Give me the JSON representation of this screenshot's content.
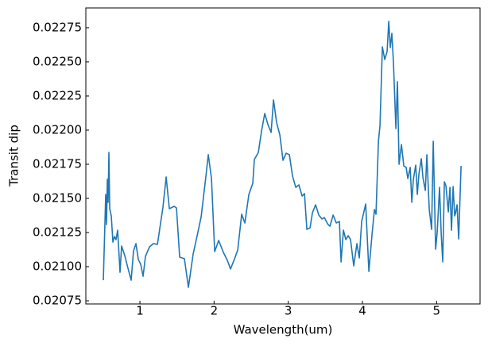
{
  "chart_data": {
    "type": "line",
    "x_label": "Wavelength(um)",
    "y_label": "Transit dip",
    "color": "#1f77b4",
    "x": [
      0.507,
      0.539,
      0.55,
      0.561,
      0.571,
      0.582,
      0.593,
      0.614,
      0.636,
      0.657,
      0.678,
      0.7,
      0.732,
      0.753,
      0.796,
      0.839,
      0.882,
      0.914,
      0.947,
      0.979,
      1.011,
      1.043,
      1.075,
      1.129,
      1.182,
      1.236,
      1.311,
      1.354,
      1.397,
      1.461,
      1.493,
      1.536,
      1.6,
      1.654,
      1.718,
      1.772,
      1.826,
      1.89,
      1.922,
      1.965,
      2.008,
      2.062,
      2.125,
      2.179,
      2.222,
      2.276,
      2.319,
      2.372,
      2.415,
      2.469,
      2.522,
      2.543,
      2.597,
      2.64,
      2.683,
      2.726,
      2.769,
      2.801,
      2.844,
      2.887,
      2.929,
      2.972,
      3.015,
      3.058,
      3.101,
      3.144,
      3.187,
      3.219,
      3.251,
      3.294,
      3.326,
      3.369,
      3.412,
      3.455,
      3.487,
      3.53,
      3.562,
      3.605,
      3.648,
      3.69,
      3.712,
      3.744,
      3.776,
      3.808,
      3.84,
      3.883,
      3.926,
      3.958,
      3.99,
      4.044,
      4.087,
      4.13,
      4.162,
      4.183,
      4.216,
      4.237,
      4.269,
      4.301,
      4.333,
      4.355,
      4.376,
      4.397,
      4.419,
      4.451,
      4.472,
      4.494,
      4.526,
      4.558,
      4.59,
      4.612,
      4.644,
      4.666,
      4.687,
      4.719,
      4.74,
      4.762,
      4.794,
      4.816,
      4.848,
      4.869,
      4.901,
      4.933,
      4.955,
      4.987,
      5.008,
      5.04,
      5.062,
      5.083,
      5.105,
      5.126,
      5.158,
      5.18,
      5.201,
      5.223,
      5.244,
      5.255,
      5.276,
      5.298,
      5.33
    ],
    "values": [
      0.020901,
      0.021529,
      0.021308,
      0.02164,
      0.021471,
      0.021837,
      0.021424,
      0.021372,
      0.02118,
      0.021221,
      0.021198,
      0.021267,
      0.020959,
      0.021151,
      0.021081,
      0.020988,
      0.020901,
      0.021116,
      0.021169,
      0.021052,
      0.021017,
      0.02093,
      0.021076,
      0.021145,
      0.021169,
      0.021163,
      0.021436,
      0.021657,
      0.021424,
      0.021442,
      0.02143,
      0.02107,
      0.021058,
      0.020849,
      0.021093,
      0.021227,
      0.021366,
      0.021663,
      0.02182,
      0.021645,
      0.02111,
      0.021192,
      0.021105,
      0.021046,
      0.020983,
      0.021058,
      0.021122,
      0.021384,
      0.02132,
      0.021529,
      0.02161,
      0.021785,
      0.021837,
      0.021994,
      0.022122,
      0.022041,
      0.021983,
      0.022221,
      0.022052,
      0.021965,
      0.021779,
      0.021831,
      0.02182,
      0.021663,
      0.021581,
      0.021599,
      0.021517,
      0.021535,
      0.021273,
      0.021285,
      0.021395,
      0.021453,
      0.021378,
      0.021349,
      0.02136,
      0.021314,
      0.021296,
      0.021378,
      0.02132,
      0.021331,
      0.021035,
      0.021267,
      0.021198,
      0.021227,
      0.021198,
      0.021006,
      0.021169,
      0.021064,
      0.021331,
      0.021459,
      0.020965,
      0.021238,
      0.021419,
      0.021384,
      0.021919,
      0.022035,
      0.02261,
      0.022517,
      0.022576,
      0.022797,
      0.022605,
      0.022709,
      0.022488,
      0.022012,
      0.022355,
      0.02175,
      0.021895,
      0.021738,
      0.021727,
      0.021645,
      0.021727,
      0.021471,
      0.02164,
      0.021744,
      0.021529,
      0.02168,
      0.021791,
      0.021651,
      0.021558,
      0.02182,
      0.021419,
      0.021273,
      0.021919,
      0.021128,
      0.02125,
      0.021581,
      0.021244,
      0.021035,
      0.021622,
      0.021593,
      0.021401,
      0.021581,
      0.021267,
      0.021587,
      0.021372,
      0.02139,
      0.021453,
      0.021203,
      0.021738
    ],
    "xlim": [
      0.271,
      5.586
    ],
    "ylim": [
      0.020727,
      0.022895
    ],
    "xticks": [
      1,
      2,
      3,
      4,
      5
    ],
    "yticks": [
      0.02075,
      {
        "value": 0.021,
        "label": "0.02100"
      },
      0.02125,
      {
        "value": 0.0215,
        "label": "0.02150"
      },
      0.02175,
      {
        "value": 0.022,
        "label": "0.02200"
      },
      0.02225,
      {
        "value": 0.0225,
        "label": "0.02250"
      },
      0.02275
    ]
  }
}
